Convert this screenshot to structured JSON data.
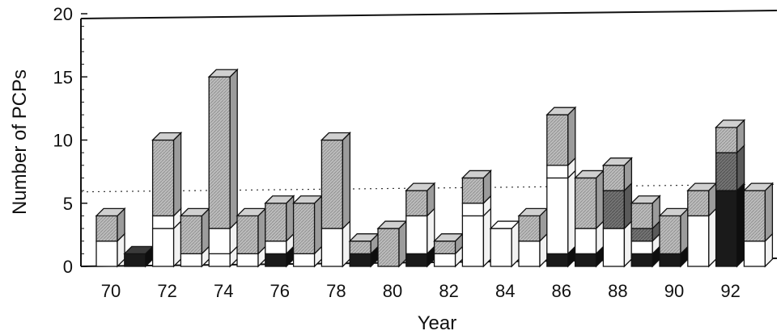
{
  "chart_data": {
    "type": "bar",
    "stacked": true,
    "style": "3d",
    "xlabel": "Year",
    "ylabel": "Number of PCPs",
    "ylim": [
      0,
      20
    ],
    "yticks": [
      0,
      5,
      10,
      15,
      20
    ],
    "x_tick_labels": [
      "70",
      "72",
      "74",
      "76",
      "78",
      "80",
      "82",
      "84",
      "86",
      "88",
      "90",
      "92"
    ],
    "reference_line": {
      "style": "dotted",
      "start_value": 5.9,
      "end_value": 6.5
    },
    "segment_colors": {
      "black": "#1a1a1a",
      "white": "#ffffff",
      "dark_gray": "#707070",
      "light_gray": "#b8b8b8"
    },
    "bars": [
      {
        "year": 70,
        "segments": [
          {
            "fill": "white",
            "value": 2
          },
          {
            "fill": "light_gray",
            "value": 2
          }
        ]
      },
      {
        "year": 71,
        "segments": [
          {
            "fill": "black",
            "value": 1
          }
        ]
      },
      {
        "year": 72,
        "segments": [
          {
            "fill": "white",
            "value": 3
          },
          {
            "fill": "white",
            "value": 1
          },
          {
            "fill": "light_gray",
            "value": 6
          }
        ]
      },
      {
        "year": 73,
        "segments": [
          {
            "fill": "white",
            "value": 1
          },
          {
            "fill": "light_gray",
            "value": 3
          }
        ]
      },
      {
        "year": 74,
        "segments": [
          {
            "fill": "white",
            "value": 1
          },
          {
            "fill": "white",
            "value": 2
          },
          {
            "fill": "light_gray",
            "value": 12
          }
        ]
      },
      {
        "year": 75,
        "segments": [
          {
            "fill": "white",
            "value": 1
          },
          {
            "fill": "light_gray",
            "value": 3
          }
        ]
      },
      {
        "year": 76,
        "segments": [
          {
            "fill": "black",
            "value": 1
          },
          {
            "fill": "white",
            "value": 1
          },
          {
            "fill": "light_gray",
            "value": 3
          }
        ]
      },
      {
        "year": 77,
        "segments": [
          {
            "fill": "white",
            "value": 1
          },
          {
            "fill": "light_gray",
            "value": 4
          }
        ]
      },
      {
        "year": 78,
        "segments": [
          {
            "fill": "white",
            "value": 3
          },
          {
            "fill": "light_gray",
            "value": 7
          }
        ]
      },
      {
        "year": 79,
        "segments": [
          {
            "fill": "black",
            "value": 1
          },
          {
            "fill": "light_gray",
            "value": 1
          }
        ]
      },
      {
        "year": 80,
        "segments": [
          {
            "fill": "light_gray",
            "value": 3
          }
        ]
      },
      {
        "year": 81,
        "segments": [
          {
            "fill": "black",
            "value": 1
          },
          {
            "fill": "white",
            "value": 3
          },
          {
            "fill": "light_gray",
            "value": 2
          }
        ]
      },
      {
        "year": 82,
        "segments": [
          {
            "fill": "white",
            "value": 1
          },
          {
            "fill": "light_gray",
            "value": 1
          }
        ]
      },
      {
        "year": 83,
        "segments": [
          {
            "fill": "white",
            "value": 4
          },
          {
            "fill": "white",
            "value": 1
          },
          {
            "fill": "light_gray",
            "value": 2
          }
        ]
      },
      {
        "year": 84,
        "segments": [
          {
            "fill": "white",
            "value": 3
          }
        ]
      },
      {
        "year": 85,
        "segments": [
          {
            "fill": "white",
            "value": 2
          },
          {
            "fill": "light_gray",
            "value": 2
          }
        ]
      },
      {
        "year": 86,
        "segments": [
          {
            "fill": "black",
            "value": 1
          },
          {
            "fill": "white",
            "value": 6
          },
          {
            "fill": "white",
            "value": 1
          },
          {
            "fill": "light_gray",
            "value": 4
          }
        ]
      },
      {
        "year": 87,
        "segments": [
          {
            "fill": "black",
            "value": 1
          },
          {
            "fill": "white",
            "value": 2
          },
          {
            "fill": "light_gray",
            "value": 4
          }
        ]
      },
      {
        "year": 88,
        "segments": [
          {
            "fill": "white",
            "value": 3
          },
          {
            "fill": "dark_gray",
            "value": 3
          },
          {
            "fill": "light_gray",
            "value": 2
          }
        ]
      },
      {
        "year": 89,
        "segments": [
          {
            "fill": "black",
            "value": 1
          },
          {
            "fill": "white",
            "value": 1
          },
          {
            "fill": "dark_gray",
            "value": 1
          },
          {
            "fill": "light_gray",
            "value": 2
          }
        ]
      },
      {
        "year": 90,
        "segments": [
          {
            "fill": "black",
            "value": 1
          },
          {
            "fill": "light_gray",
            "value": 3
          }
        ]
      },
      {
        "year": 91,
        "segments": [
          {
            "fill": "white",
            "value": 4
          },
          {
            "fill": "light_gray",
            "value": 2
          }
        ]
      },
      {
        "year": 92,
        "segments": [
          {
            "fill": "black",
            "value": 6
          },
          {
            "fill": "dark_gray",
            "value": 3
          },
          {
            "fill": "light_gray",
            "value": 2
          }
        ]
      },
      {
        "year": 93,
        "segments": [
          {
            "fill": "white",
            "value": 2
          },
          {
            "fill": "light_gray",
            "value": 4
          }
        ]
      }
    ]
  }
}
